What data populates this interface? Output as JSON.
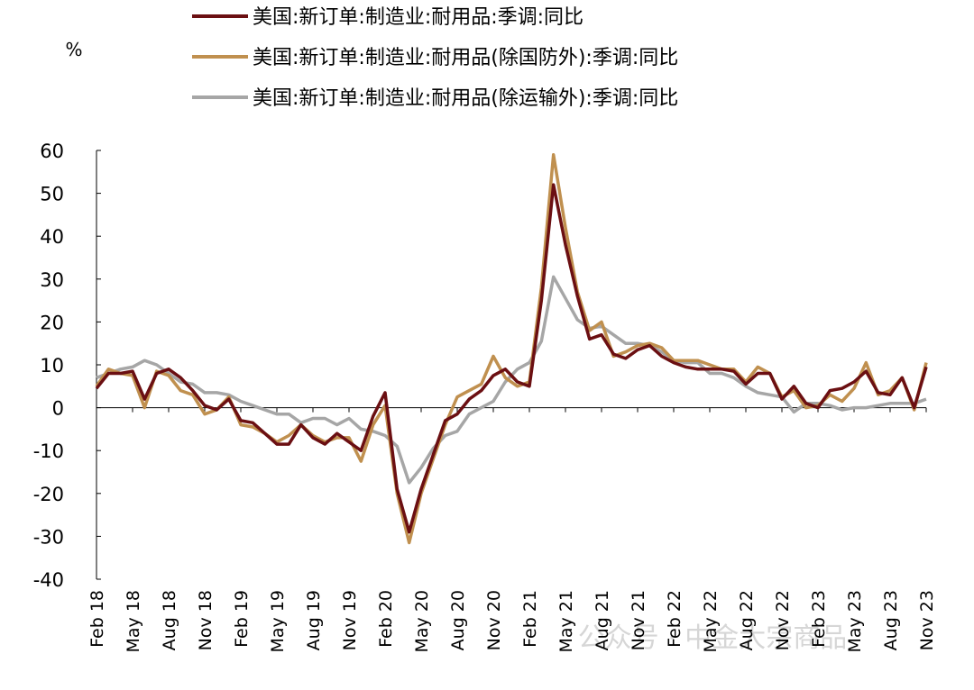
{
  "chart_data": {
    "type": "line",
    "y_label": "%",
    "watermark": "公众号 · 中金大宗商品",
    "categories": [
      "Feb 18",
      null,
      null,
      "May 18",
      null,
      null,
      "Aug 18",
      null,
      null,
      "Nov 18",
      null,
      null,
      "Feb 19",
      null,
      null,
      "May 19",
      null,
      null,
      "Aug 19",
      null,
      null,
      "Nov 19",
      null,
      null,
      "Feb 20",
      null,
      null,
      "May 20",
      null,
      null,
      "Aug 20",
      null,
      null,
      "Nov 20",
      null,
      null,
      "Feb 21",
      null,
      null,
      "May 21",
      null,
      null,
      "Aug 21",
      null,
      null,
      "Nov 21",
      null,
      null,
      "Feb 22",
      null,
      null,
      "May 22",
      null,
      null,
      "Aug 22",
      null,
      null,
      "Nov 22",
      null,
      null,
      "Feb 23",
      null,
      null,
      "May 23",
      null,
      null,
      "Aug 23",
      null,
      null,
      "Nov 23"
    ],
    "series": [
      {
        "name": "美国:新订单:制造业:耐用品:季调:同比",
        "color": "#6b0f12",
        "values": [
          4.5,
          8,
          8,
          8.5,
          2,
          8,
          9,
          7,
          4,
          0.5,
          -0.5,
          2,
          -3,
          -3.5,
          -6,
          -8.5,
          -8.5,
          -4,
          -7,
          -8.5,
          -6,
          -8,
          -10,
          -2,
          3.5,
          -19,
          -29,
          -19,
          -11,
          -3,
          -1.5,
          2,
          4,
          7.5,
          9,
          6,
          5,
          25,
          52,
          38,
          26,
          16,
          17,
          12.5,
          11.5,
          13.5,
          14.5,
          12,
          10.5,
          9.5,
          9,
          9,
          9,
          8.5,
          5.5,
          8,
          8,
          2,
          5,
          1,
          0,
          4,
          4.5,
          6,
          8.5,
          3.5,
          3,
          7,
          0,
          9.5
        ]
      },
      {
        "name": "美国:新订单:制造业:耐用品(除国防外):季调:同比",
        "color": "#c0904f",
        "values": [
          5,
          9,
          8,
          7.5,
          0,
          8.5,
          7.5,
          4,
          3,
          -1.5,
          -0.5,
          2.5,
          -4,
          -4.5,
          -6,
          -8,
          -6.5,
          -4,
          -6.5,
          -8,
          -7,
          -7,
          -12.5,
          -4,
          0.5,
          -20,
          -31.5,
          -20,
          -12,
          -4,
          2.5,
          4,
          5.5,
          12,
          7,
          5,
          6,
          28,
          59,
          42,
          27,
          18,
          20,
          12,
          13,
          14.5,
          15,
          14,
          11,
          11,
          11,
          10,
          9,
          9,
          6,
          9.5,
          8,
          2.5,
          4,
          0,
          0.5,
          3,
          1.5,
          4.5,
          10.5,
          3,
          4,
          7,
          -0.5,
          10.5
        ]
      },
      {
        "name": "美国:新订单:制造业:耐用品(除运输外):季调:同比",
        "color": "#a6a6a6",
        "values": [
          7,
          8,
          9,
          9.5,
          11,
          10,
          8,
          6,
          5.5,
          3.5,
          3.5,
          3,
          1.5,
          0.5,
          -0.5,
          -1.5,
          -1.5,
          -3.5,
          -2.5,
          -2.5,
          -4,
          -2.5,
          -5,
          -5.5,
          -6.5,
          -9,
          -17.5,
          -14,
          -9.5,
          -6.5,
          -5.5,
          -1.5,
          0,
          1.5,
          6,
          9,
          10.5,
          15.5,
          30.5,
          25.5,
          20.5,
          18.5,
          19,
          17,
          15,
          15,
          14.5,
          13,
          11,
          10.5,
          10.5,
          8,
          8,
          7,
          5,
          3.5,
          3,
          2.5,
          -1,
          1,
          1,
          0.5,
          -0.5,
          0,
          0,
          0.5,
          1,
          1,
          1,
          2
        ]
      }
    ],
    "ylim": [
      -40,
      60
    ],
    "yticks": [
      -40,
      -30,
      -20,
      -10,
      0,
      10,
      20,
      30,
      40,
      50,
      60
    ]
  }
}
